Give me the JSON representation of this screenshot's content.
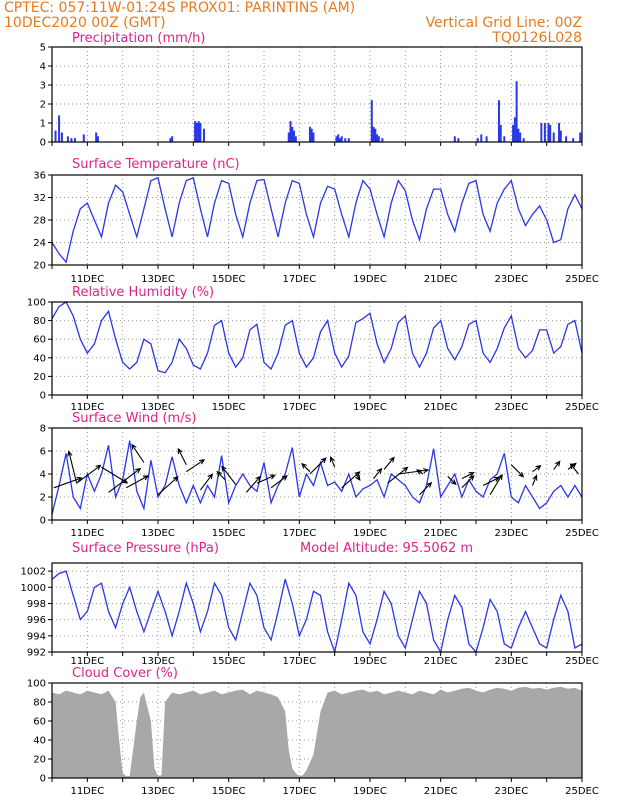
{
  "header": {
    "line1": "CPTEC:   057:11W-01:24S   PROX01: PARINTINS (AM)",
    "line2": "10DEC2020 00Z (GMT)",
    "grid_note": "Vertical Grid Line: 00Z",
    "code": "TQ0126L028"
  },
  "colors": {
    "header": "#e87a1e",
    "title": "#e0218a",
    "series": "#2a37e8",
    "cloud": "#a8a8a8",
    "grid": "#9a9a9a"
  },
  "x_labels": [
    "11DEC",
    "13DEC",
    "15DEC",
    "17DEC",
    "19DEC",
    "21DEC",
    "23DEC",
    "25DEC"
  ],
  "chart_data": [
    {
      "type": "bar",
      "title": "Precipitation (mm/h)",
      "ylim": [
        0,
        5
      ],
      "yticks": [
        0,
        1,
        2,
        3,
        4,
        5
      ],
      "x": [
        10.1,
        10.2,
        10.28,
        10.45,
        10.55,
        10.65,
        10.9,
        11.25,
        11.3,
        13.35,
        13.4,
        14.05,
        14.1,
        14.15,
        14.2,
        14.3,
        16.7,
        16.75,
        16.8,
        16.85,
        16.9,
        17.3,
        17.35,
        17.4,
        18.05,
        18.1,
        18.15,
        18.2,
        18.3,
        18.4,
        19.05,
        19.1,
        19.15,
        19.2,
        19.25,
        19.35,
        21.4,
        21.5,
        22.05,
        22.15,
        22.3,
        22.65,
        22.7,
        22.8,
        23.05,
        23.1,
        23.15,
        23.2,
        23.25,
        23.35,
        23.85,
        23.95,
        24.05,
        24.1,
        24.2,
        24.35,
        24.4,
        24.55,
        24.75,
        24.95
      ],
      "values": [
        0.6,
        1.4,
        0.5,
        0.3,
        0.2,
        0.2,
        0.4,
        0.5,
        0.3,
        0.2,
        0.3,
        1.1,
        1.0,
        1.1,
        1.0,
        0.7,
        0.5,
        1.1,
        0.8,
        0.6,
        0.3,
        0.8,
        0.7,
        0.5,
        0.3,
        0.4,
        0.2,
        0.3,
        0.2,
        0.2,
        2.2,
        0.8,
        0.7,
        0.4,
        0.3,
        0.2,
        0.3,
        0.2,
        0.2,
        0.4,
        0.3,
        2.2,
        0.9,
        0.3,
        0.9,
        1.3,
        3.2,
        0.7,
        0.5,
        0.2,
        1.0,
        1.0,
        1.0,
        0.9,
        0.5,
        1.0,
        0.6,
        0.3,
        0.2,
        0.5
      ],
      "series": [
        {
          "name": "",
          "color": "#2a37e8"
        }
      ]
    },
    {
      "type": "line",
      "title": "Surface Temperature (nC)",
      "ylim": [
        20,
        36
      ],
      "yticks": [
        20,
        24,
        28,
        32,
        36
      ],
      "x": [
        10.0,
        10.2,
        10.4,
        10.6,
        10.8,
        11.0,
        11.2,
        11.4,
        11.6,
        11.8,
        12.0,
        12.2,
        12.4,
        12.6,
        12.8,
        13.0,
        13.2,
        13.4,
        13.6,
        13.8,
        14.0,
        14.2,
        14.4,
        14.6,
        14.8,
        15.0,
        15.2,
        15.4,
        15.6,
        15.8,
        16.0,
        16.2,
        16.4,
        16.6,
        16.8,
        17.0,
        17.2,
        17.4,
        17.6,
        17.8,
        18.0,
        18.2,
        18.4,
        18.6,
        18.8,
        19.0,
        19.2,
        19.4,
        19.6,
        19.8,
        20.0,
        20.2,
        20.4,
        20.6,
        20.8,
        21.0,
        21.2,
        21.4,
        21.6,
        21.8,
        22.0,
        22.2,
        22.4,
        22.6,
        22.8,
        23.0,
        23.2,
        23.4,
        23.6,
        23.8,
        24.0,
        24.2,
        24.4,
        24.6,
        24.8,
        25.0
      ],
      "values": [
        24,
        22,
        20.5,
        26,
        30,
        31,
        28,
        25,
        31,
        34.2,
        33,
        29,
        25,
        30,
        35,
        35.5,
        30,
        25,
        31,
        35,
        35.5,
        30,
        25,
        31,
        35,
        34.5,
        29,
        25,
        31,
        35,
        35.2,
        30,
        25,
        31,
        35,
        34.5,
        29,
        25,
        31,
        34,
        33.5,
        29,
        25,
        31,
        35,
        33.5,
        29,
        25,
        31,
        35,
        33.2,
        28,
        24.5,
        30,
        33.5,
        33.5,
        29,
        26,
        31,
        34.5,
        35,
        29,
        26,
        31,
        33.5,
        35,
        30,
        27,
        29,
        30.5,
        28,
        24,
        24.5,
        30,
        32.5,
        30
      ],
      "series": [
        {
          "name": "",
          "color": "#2a37e8"
        }
      ]
    },
    {
      "type": "line",
      "title": "Relative Humidity (%)",
      "ylim": [
        0,
        100
      ],
      "yticks": [
        0,
        20,
        40,
        60,
        80,
        100
      ],
      "x": [
        10.0,
        10.2,
        10.4,
        10.6,
        10.8,
        11.0,
        11.2,
        11.4,
        11.6,
        11.8,
        12.0,
        12.2,
        12.4,
        12.6,
        12.8,
        13.0,
        13.2,
        13.4,
        13.6,
        13.8,
        14.0,
        14.2,
        14.4,
        14.6,
        14.8,
        15.0,
        15.2,
        15.4,
        15.6,
        15.8,
        16.0,
        16.2,
        16.4,
        16.6,
        16.8,
        17.0,
        17.2,
        17.4,
        17.6,
        17.8,
        18.0,
        18.2,
        18.4,
        18.6,
        18.8,
        19.0,
        19.2,
        19.4,
        19.6,
        19.8,
        20.0,
        20.2,
        20.4,
        20.6,
        20.8,
        21.0,
        21.2,
        21.4,
        21.6,
        21.8,
        22.0,
        22.2,
        22.4,
        22.6,
        22.8,
        23.0,
        23.2,
        23.4,
        23.6,
        23.8,
        24.0,
        24.2,
        24.4,
        24.6,
        24.8,
        25.0
      ],
      "values": [
        82,
        95,
        100,
        85,
        60,
        45,
        55,
        80,
        90,
        60,
        35,
        28,
        35,
        60,
        55,
        26,
        24,
        35,
        60,
        50,
        32,
        28,
        45,
        75,
        80,
        45,
        30,
        40,
        70,
        76,
        35,
        28,
        45,
        75,
        80,
        45,
        30,
        40,
        68,
        80,
        45,
        30,
        42,
        78,
        82,
        88,
        55,
        35,
        50,
        78,
        85,
        45,
        30,
        45,
        72,
        80,
        50,
        38,
        52,
        76,
        80,
        45,
        35,
        50,
        72,
        85,
        50,
        40,
        48,
        70,
        70,
        45,
        52,
        76,
        80,
        45
      ],
      "series": [
        {
          "name": "",
          "color": "#2a37e8"
        }
      ]
    },
    {
      "type": "line",
      "title": "Surface Wind (m/s)",
      "ylim": [
        0,
        8
      ],
      "yticks": [
        0,
        2,
        4,
        6,
        8
      ],
      "x": [
        10.0,
        10.2,
        10.4,
        10.6,
        10.8,
        11.0,
        11.2,
        11.4,
        11.6,
        11.8,
        12.0,
        12.2,
        12.4,
        12.6,
        12.8,
        13.0,
        13.2,
        13.4,
        13.6,
        13.8,
        14.0,
        14.2,
        14.4,
        14.6,
        14.8,
        15.0,
        15.2,
        15.4,
        15.6,
        15.8,
        16.0,
        16.2,
        16.4,
        16.6,
        16.8,
        17.0,
        17.2,
        17.4,
        17.6,
        17.8,
        18.0,
        18.2,
        18.4,
        18.6,
        18.8,
        19.0,
        19.2,
        19.4,
        19.6,
        19.8,
        20.0,
        20.2,
        20.4,
        20.6,
        20.8,
        21.0,
        21.2,
        21.4,
        21.6,
        21.8,
        22.0,
        22.2,
        22.4,
        22.6,
        22.8,
        23.0,
        23.2,
        23.4,
        23.6,
        23.8,
        24.0,
        24.2,
        24.4,
        24.6,
        24.8,
        25.0
      ],
      "values": [
        0.5,
        3,
        5.8,
        2,
        1,
        4,
        2.5,
        4,
        6.5,
        2,
        3.5,
        6.9,
        2.5,
        1,
        5.2,
        2,
        3,
        5.5,
        3,
        1.5,
        3,
        1.5,
        3,
        2,
        5.6,
        1.5,
        3,
        4,
        3,
        2.5,
        5,
        1.5,
        3,
        4,
        6.3,
        2,
        4,
        3,
        5,
        3,
        3.3,
        2.5,
        4,
        2,
        2.7,
        3,
        3.5,
        2,
        4,
        3.5,
        3,
        2,
        1.5,
        3,
        6.2,
        2,
        3,
        4,
        2,
        3.5,
        2.5,
        2,
        3.5,
        4,
        5.8,
        2,
        1.5,
        3,
        2,
        1,
        1.5,
        2.5,
        3,
        2,
        3,
        2
      ],
      "series": [
        {
          "name": "",
          "color": "#2a37e8"
        }
      ],
      "arrows": [
        {
          "x": 10.05,
          "y": 2.8,
          "u": 1.4,
          "v": 0.5
        },
        {
          "x": 10.7,
          "y": 3.2,
          "u": -0.4,
          "v": 1.6
        },
        {
          "x": 10.7,
          "y": 3.2,
          "u": 1.2,
          "v": 0.9
        },
        {
          "x": 11.4,
          "y": 4.6,
          "u": 1.3,
          "v": -0.8
        },
        {
          "x": 11.6,
          "y": 2.4,
          "u": 1.6,
          "v": 1.2
        },
        {
          "x": 12.6,
          "y": 5.0,
          "u": -0.6,
          "v": 0.9
        },
        {
          "x": 12.1,
          "y": 2.8,
          "u": 1.1,
          "v": 0.6
        },
        {
          "x": 13.0,
          "y": 2.2,
          "u": 1.0,
          "v": 0.9
        },
        {
          "x": 13.8,
          "y": 4.8,
          "u": -0.4,
          "v": 0.8
        },
        {
          "x": 13.8,
          "y": 4.2,
          "u": 0.9,
          "v": 0.6
        },
        {
          "x": 14.2,
          "y": 2.6,
          "u": 0.6,
          "v": 0.8
        },
        {
          "x": 14.9,
          "y": 3.5,
          "u": -0.4,
          "v": 0.4
        },
        {
          "x": 15.2,
          "y": 3.1,
          "u": -0.7,
          "v": 0.9
        },
        {
          "x": 15.5,
          "y": 2.4,
          "u": 0.7,
          "v": 0.8
        },
        {
          "x": 15.8,
          "y": 3.2,
          "u": 0.9,
          "v": 0.4
        },
        {
          "x": 16.2,
          "y": 2.8,
          "u": 0.8,
          "v": 0.6
        },
        {
          "x": 17.3,
          "y": 4.2,
          "u": -0.4,
          "v": 0.4
        },
        {
          "x": 17.3,
          "y": 4.0,
          "u": 0.8,
          "v": 0.8
        },
        {
          "x": 18.0,
          "y": 4.6,
          "u": -0.2,
          "v": 0.5
        },
        {
          "x": 18.2,
          "y": 2.8,
          "u": 0.9,
          "v": 0.8
        },
        {
          "x": 18.6,
          "y": 4.0,
          "u": 0.2,
          "v": -0.3
        },
        {
          "x": 19.1,
          "y": 3.6,
          "u": 0.4,
          "v": 0.5
        },
        {
          "x": 19.4,
          "y": 4.4,
          "u": 0.5,
          "v": 0.6
        },
        {
          "x": 19.5,
          "y": 3.2,
          "u": 1.0,
          "v": 0.8
        },
        {
          "x": 19.8,
          "y": 4.0,
          "u": 1.5,
          "v": 0.2
        },
        {
          "x": 20.5,
          "y": 4.0,
          "u": -0.3,
          "v": 0.2
        },
        {
          "x": 20.4,
          "y": 2.2,
          "u": 0.6,
          "v": 0.6
        },
        {
          "x": 21.2,
          "y": 3.8,
          "u": 0.4,
          "v": -0.4
        },
        {
          "x": 21.6,
          "y": 3.6,
          "u": 0.6,
          "v": 0.3
        },
        {
          "x": 21.6,
          "y": 2.8,
          "u": 0.6,
          "v": 0.6
        },
        {
          "x": 22.2,
          "y": 3.0,
          "u": 0.8,
          "v": 0.4
        },
        {
          "x": 22.4,
          "y": 2.2,
          "u": 0.6,
          "v": 1.0
        },
        {
          "x": 23.0,
          "y": 4.8,
          "u": 0.6,
          "v": -0.6
        },
        {
          "x": 23.6,
          "y": 4.2,
          "u": 0.4,
          "v": 0.3
        },
        {
          "x": 23.6,
          "y": 3.0,
          "u": 0.2,
          "v": 0.5
        },
        {
          "x": 24.2,
          "y": 4.4,
          "u": 0.3,
          "v": 0.4
        },
        {
          "x": 24.6,
          "y": 4.4,
          "u": 0.4,
          "v": 0.3
        },
        {
          "x": 24.9,
          "y": 4.0,
          "u": -0.4,
          "v": 0.5
        }
      ]
    },
    {
      "type": "line",
      "title": "Surface Pressure (hPa)",
      "annotation": "Model Altitude: 95.5062 m",
      "ylim": [
        992,
        1003
      ],
      "yticks": [
        992,
        994,
        996,
        998,
        1000,
        1002
      ],
      "x": [
        10.0,
        10.2,
        10.4,
        10.6,
        10.8,
        11.0,
        11.2,
        11.4,
        11.6,
        11.8,
        12.0,
        12.2,
        12.4,
        12.6,
        12.8,
        13.0,
        13.2,
        13.4,
        13.6,
        13.8,
        14.0,
        14.2,
        14.4,
        14.6,
        14.8,
        15.0,
        15.2,
        15.4,
        15.6,
        15.8,
        16.0,
        16.2,
        16.4,
        16.6,
        16.8,
        17.0,
        17.2,
        17.4,
        17.6,
        17.8,
        18.0,
        18.2,
        18.4,
        18.6,
        18.8,
        19.0,
        19.2,
        19.4,
        19.6,
        19.8,
        20.0,
        20.2,
        20.4,
        20.6,
        20.8,
        21.0,
        21.2,
        21.4,
        21.6,
        21.8,
        22.0,
        22.2,
        22.4,
        22.6,
        22.8,
        23.0,
        23.2,
        23.4,
        23.6,
        23.8,
        24.0,
        24.2,
        24.4,
        24.6,
        24.8,
        25.0
      ],
      "values": [
        1001,
        1001.7,
        1002,
        999,
        996,
        997,
        1000,
        1000.5,
        997,
        995,
        998,
        1000,
        997,
        994.5,
        997,
        999.5,
        997,
        994,
        997,
        1000.5,
        998,
        994.5,
        997,
        1000.5,
        999,
        995,
        993.5,
        997,
        1000.5,
        999,
        995,
        993.5,
        997,
        1001,
        998,
        994,
        996,
        999.5,
        999,
        994.5,
        992,
        996,
        1000.5,
        999,
        994.5,
        993,
        996,
        999.5,
        998,
        994,
        992.5,
        996,
        999.5,
        998,
        993.5,
        992,
        996,
        999,
        997.5,
        993,
        992,
        995,
        998.5,
        997,
        993,
        992.5,
        995,
        997,
        995,
        993,
        992.5,
        996,
        999,
        997,
        992.5,
        993
      ],
      "series": [
        {
          "name": "",
          "color": "#2a37e8"
        }
      ]
    },
    {
      "type": "area",
      "title": "Cloud Cover (%)",
      "ylim": [
        0,
        100
      ],
      "yticks": [
        0,
        20,
        40,
        60,
        80,
        100
      ],
      "x": [
        10.0,
        10.2,
        10.4,
        10.6,
        10.8,
        11.0,
        11.2,
        11.4,
        11.6,
        11.8,
        11.9,
        12.0,
        12.1,
        12.2,
        12.4,
        12.5,
        12.6,
        12.8,
        12.9,
        13.0,
        13.1,
        13.2,
        13.4,
        13.6,
        13.8,
        14.0,
        14.2,
        14.4,
        14.6,
        14.8,
        15.0,
        15.2,
        15.4,
        15.6,
        15.8,
        16.0,
        16.2,
        16.4,
        16.6,
        16.7,
        16.8,
        16.9,
        17.0,
        17.1,
        17.2,
        17.4,
        17.6,
        17.8,
        18.0,
        18.2,
        18.4,
        18.6,
        18.8,
        19.0,
        19.2,
        19.4,
        19.6,
        19.8,
        20.0,
        20.2,
        20.4,
        20.6,
        20.8,
        21.0,
        21.2,
        21.4,
        21.6,
        21.8,
        22.0,
        22.2,
        22.4,
        22.6,
        22.8,
        23.0,
        23.2,
        23.4,
        23.6,
        23.8,
        24.0,
        24.2,
        24.4,
        24.6,
        24.8,
        25.0
      ],
      "values": [
        90,
        88,
        92,
        90,
        88,
        92,
        90,
        88,
        92,
        80,
        40,
        5,
        2,
        2,
        60,
        85,
        90,
        60,
        10,
        2,
        3,
        80,
        90,
        88,
        90,
        92,
        88,
        90,
        92,
        88,
        90,
        92,
        93,
        88,
        92,
        90,
        88,
        85,
        70,
        30,
        10,
        5,
        2,
        3,
        8,
        25,
        70,
        90,
        92,
        88,
        90,
        92,
        93,
        90,
        92,
        88,
        90,
        92,
        90,
        88,
        92,
        90,
        88,
        93,
        90,
        92,
        94,
        95,
        92,
        90,
        93,
        95,
        94,
        92,
        95,
        96,
        94,
        95,
        93,
        95,
        96,
        94,
        95,
        92
      ],
      "series": [
        {
          "name": "",
          "color": "#a8a8a8"
        }
      ]
    }
  ]
}
